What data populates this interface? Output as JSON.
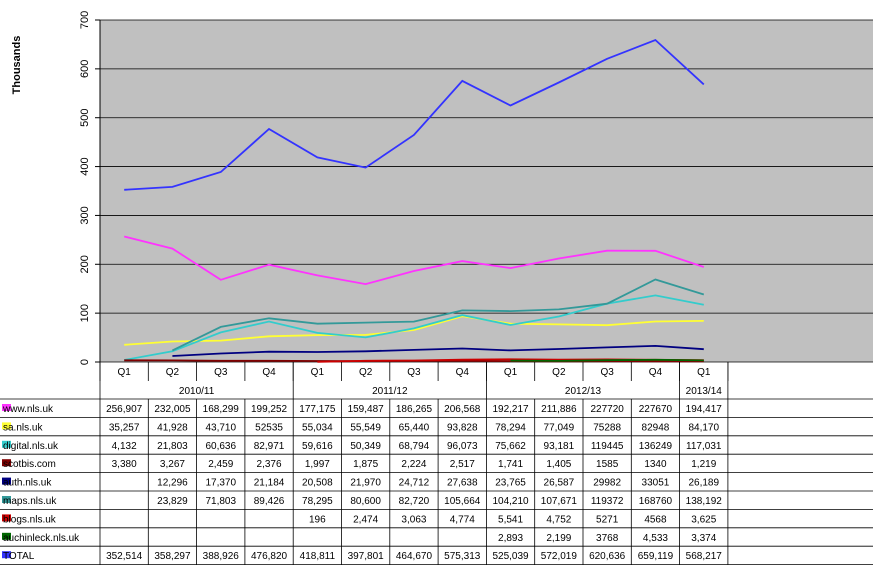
{
  "chart_data": {
    "type": "line",
    "ylabel": "Thousands",
    "ylim": [
      0,
      700
    ],
    "yticks": [
      0,
      100,
      200,
      300,
      400,
      500,
      600,
      700
    ],
    "grid": true,
    "background": "#c0c0c0",
    "quarters": [
      "Q1",
      "Q2",
      "Q3",
      "Q4",
      "Q1",
      "Q2",
      "Q3",
      "Q4",
      "Q1",
      "Q2",
      "Q3",
      "Q4",
      "Q1"
    ],
    "years": [
      {
        "label": "2010/11",
        "span": 4
      },
      {
        "label": "2011/12",
        "span": 4
      },
      {
        "label": "2012/13",
        "span": 4
      },
      {
        "label": "2013/14",
        "span": 1
      }
    ],
    "series": [
      {
        "name": "www.nls.uk",
        "color": "#ff33ff",
        "values": [
          256.907,
          232.005,
          168.299,
          199.252,
          177.175,
          159.487,
          186.265,
          206.568,
          192.217,
          211.886,
          227.72,
          227.67,
          194.417
        ],
        "cells": [
          "256,907",
          "232,005",
          "168,299",
          "199,252",
          "177,175",
          "159,487",
          "186,265",
          "206,568",
          "192,217",
          "211,886",
          "227720",
          "227670",
          "194,417"
        ]
      },
      {
        "name": "sa.nls.uk",
        "color": "#ffff33",
        "values": [
          35.257,
          41.928,
          43.71,
          52.535,
          55.034,
          55.549,
          65.44,
          93.828,
          78.294,
          77.049,
          75.288,
          82.948,
          84.17
        ],
        "cells": [
          "35,257",
          "41,928",
          "43,710",
          "52535",
          "55,034",
          "55,549",
          "65,440",
          "93,828",
          "78,294",
          "77,049",
          "75288",
          "82948",
          "84,170"
        ]
      },
      {
        "name": "digital.nls.uk",
        "color": "#33cccc",
        "values": [
          4.132,
          21.803,
          60.636,
          82.971,
          59.616,
          50.349,
          68.794,
          96.073,
          75.662,
          93.181,
          119.445,
          136.249,
          117.031
        ],
        "cells": [
          "4,132",
          "21,803",
          "60,636",
          "82,971",
          "59,616",
          "50,349",
          "68,794",
          "96,073",
          "75,662",
          "93,181",
          "119445",
          "136249",
          "117,031"
        ]
      },
      {
        "name": "scotbis.com",
        "color": "#800000",
        "values": [
          3.38,
          3.267,
          2.459,
          2.376,
          1.997,
          1.875,
          2.224,
          2.517,
          1.741,
          1.405,
          1.585,
          1.34,
          1.219
        ],
        "cells": [
          "3,380",
          "3,267",
          "2,459",
          "2,376",
          "1,997",
          "1,875",
          "2,224",
          "2,517",
          "1,741",
          "1,405",
          "1585",
          "1340",
          "1,219"
        ]
      },
      {
        "name": "auth.nls.uk",
        "color": "#000080",
        "values": [
          null,
          12.296,
          17.37,
          21.184,
          20.508,
          21.97,
          24.712,
          27.638,
          23.765,
          26.587,
          29.982,
          33.051,
          26.189
        ],
        "cells": [
          "",
          "12,296",
          "17,370",
          "21,184",
          "20,508",
          "21,970",
          "24,712",
          "27,638",
          "23,765",
          "26,587",
          "29982",
          "33051",
          "26,189"
        ]
      },
      {
        "name": "maps.nls.uk",
        "color": "#339999",
        "values": [
          null,
          23.829,
          71.803,
          89.426,
          78.295,
          80.6,
          82.72,
          105.664,
          104.21,
          107.671,
          119.372,
          168.76,
          138.192
        ],
        "cells": [
          "",
          "23,829",
          "71,803",
          "89,426",
          "78,295",
          "80,600",
          "82,720",
          "105,664",
          "104,210",
          "107,671",
          "119372",
          "168760",
          "138,192"
        ]
      },
      {
        "name": "blogs.nls.uk",
        "color": "#cc0000",
        "values": [
          null,
          null,
          null,
          null,
          0.196,
          2.474,
          3.063,
          4.774,
          5.541,
          4.752,
          5.271,
          4.568,
          3.625
        ],
        "cells": [
          "",
          "",
          "",
          "",
          "196",
          "2,474",
          "3,063",
          "4,774",
          "5,541",
          "4,752",
          "5271",
          "4568",
          "3,625"
        ]
      },
      {
        "name": "auchinleck.nls.uk",
        "color": "#006600",
        "values": [
          null,
          null,
          null,
          null,
          null,
          null,
          null,
          null,
          2.893,
          2.199,
          3.768,
          4.533,
          3.374
        ],
        "cells": [
          "",
          "",
          "",
          "",
          "",
          "",
          "",
          "",
          "2,893",
          "2,199",
          "3768",
          "4,533",
          "3,374"
        ]
      },
      {
        "name": "TOTAL",
        "color": "#3333ff",
        "values": [
          352.514,
          358.297,
          388.926,
          476.82,
          418.811,
          397.801,
          464.67,
          575.313,
          525.039,
          572.019,
          620.636,
          659.119,
          568.217
        ],
        "cells": [
          "352,514",
          "358,297",
          "388,926",
          "476,820",
          "418,811",
          "397,801",
          "464,670",
          "575,313",
          "525,039",
          "572,019",
          "620,636",
          "659,119",
          "568,217"
        ]
      }
    ]
  }
}
